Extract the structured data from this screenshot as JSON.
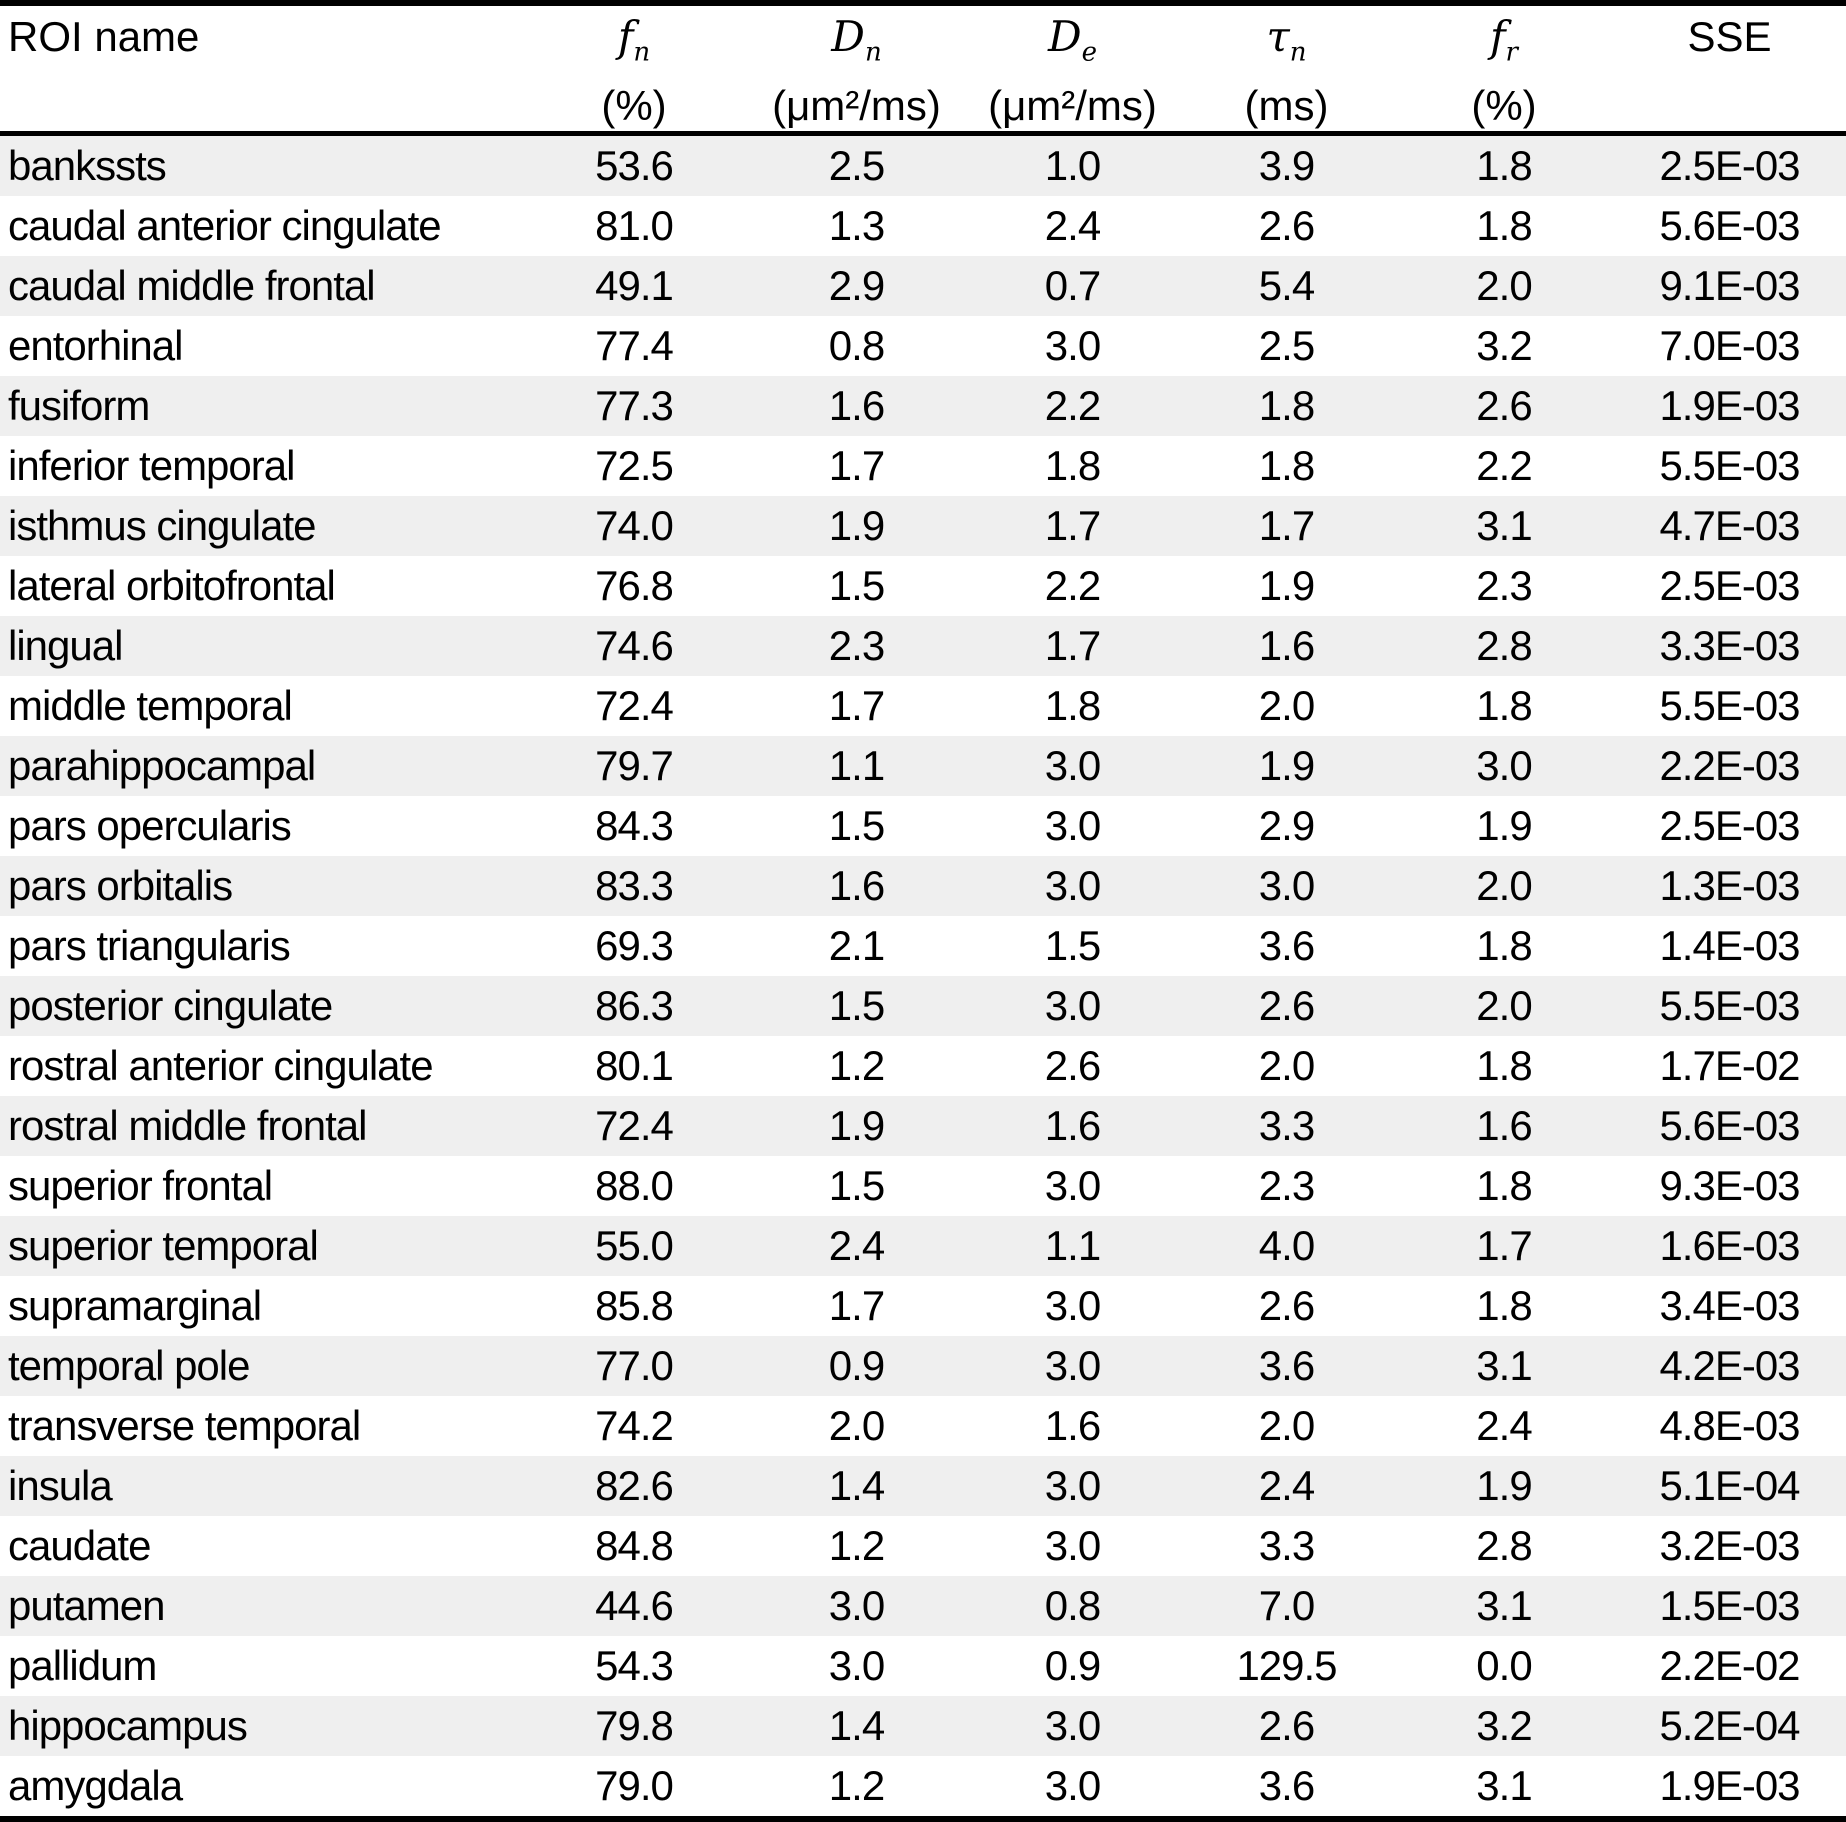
{
  "colors": {
    "row_stripe": "#efefef",
    "text": "#000000",
    "rule": "#000000",
    "background": "#ffffff"
  },
  "table": {
    "header": {
      "columns": [
        {
          "label": "ROI name"
        },
        {
          "symbol": "f",
          "sub": "n",
          "unit": "(%)"
        },
        {
          "symbol": "D",
          "sub": "n",
          "unit": "(μm²/ms)"
        },
        {
          "symbol": "D",
          "sub": "e",
          "unit": "(μm²/ms)"
        },
        {
          "symbol": "τ",
          "sub": "n",
          "unit": "(ms)"
        },
        {
          "symbol": "f",
          "sub": "r",
          "unit": "(%)"
        },
        {
          "label": "SSE"
        }
      ]
    },
    "rows": [
      [
        "bankssts",
        "53.6",
        "2.5",
        "1.0",
        "3.9",
        "1.8",
        "2.5E-03"
      ],
      [
        "caudal anterior cingulate",
        "81.0",
        "1.3",
        "2.4",
        "2.6",
        "1.8",
        "5.6E-03"
      ],
      [
        "caudal middle frontal",
        "49.1",
        "2.9",
        "0.7",
        "5.4",
        "2.0",
        "9.1E-03"
      ],
      [
        "entorhinal",
        "77.4",
        "0.8",
        "3.0",
        "2.5",
        "3.2",
        "7.0E-03"
      ],
      [
        "fusiform",
        "77.3",
        "1.6",
        "2.2",
        "1.8",
        "2.6",
        "1.9E-03"
      ],
      [
        "inferior temporal",
        "72.5",
        "1.7",
        "1.8",
        "1.8",
        "2.2",
        "5.5E-03"
      ],
      [
        "isthmus cingulate",
        "74.0",
        "1.9",
        "1.7",
        "1.7",
        "3.1",
        "4.7E-03"
      ],
      [
        "lateral orbitofrontal",
        "76.8",
        "1.5",
        "2.2",
        "1.9",
        "2.3",
        "2.5E-03"
      ],
      [
        "lingual",
        "74.6",
        "2.3",
        "1.7",
        "1.6",
        "2.8",
        "3.3E-03"
      ],
      [
        "middle temporal",
        "72.4",
        "1.7",
        "1.8",
        "2.0",
        "1.8",
        "5.5E-03"
      ],
      [
        "parahippocampal",
        "79.7",
        "1.1",
        "3.0",
        "1.9",
        "3.0",
        "2.2E-03"
      ],
      [
        "pars opercularis",
        "84.3",
        "1.5",
        "3.0",
        "2.9",
        "1.9",
        "2.5E-03"
      ],
      [
        "pars orbitalis",
        "83.3",
        "1.6",
        "3.0",
        "3.0",
        "2.0",
        "1.3E-03"
      ],
      [
        "pars triangularis",
        "69.3",
        "2.1",
        "1.5",
        "3.6",
        "1.8",
        "1.4E-03"
      ],
      [
        "posterior cingulate",
        "86.3",
        "1.5",
        "3.0",
        "2.6",
        "2.0",
        "5.5E-03"
      ],
      [
        "rostral anterior cingulate",
        "80.1",
        "1.2",
        "2.6",
        "2.0",
        "1.8",
        "1.7E-02"
      ],
      [
        "rostral middle frontal",
        "72.4",
        "1.9",
        "1.6",
        "3.3",
        "1.6",
        "5.6E-03"
      ],
      [
        "superior frontal",
        "88.0",
        "1.5",
        "3.0",
        "2.3",
        "1.8",
        "9.3E-03"
      ],
      [
        "superior temporal",
        "55.0",
        "2.4",
        "1.1",
        "4.0",
        "1.7",
        "1.6E-03"
      ],
      [
        "supramarginal",
        "85.8",
        "1.7",
        "3.0",
        "2.6",
        "1.8",
        "3.4E-03"
      ],
      [
        "temporal pole",
        "77.0",
        "0.9",
        "3.0",
        "3.6",
        "3.1",
        "4.2E-03"
      ],
      [
        "transverse temporal",
        "74.2",
        "2.0",
        "1.6",
        "2.0",
        "2.4",
        "4.8E-03"
      ],
      [
        "insula",
        "82.6",
        "1.4",
        "3.0",
        "2.4",
        "1.9",
        "5.1E-04"
      ],
      [
        "caudate",
        "84.8",
        "1.2",
        "3.0",
        "3.3",
        "2.8",
        "3.2E-03"
      ],
      [
        "putamen",
        "44.6",
        "3.0",
        "0.8",
        "7.0",
        "3.1",
        "1.5E-03"
      ],
      [
        "pallidum",
        "54.3",
        "3.0",
        "0.9",
        "129.5",
        "0.0",
        "2.2E-02"
      ],
      [
        "hippocampus",
        "79.8",
        "1.4",
        "3.0",
        "2.6",
        "3.2",
        "5.2E-04"
      ],
      [
        "amygdala",
        "79.0",
        "1.2",
        "3.0",
        "3.6",
        "3.1",
        "1.9E-03"
      ]
    ]
  }
}
